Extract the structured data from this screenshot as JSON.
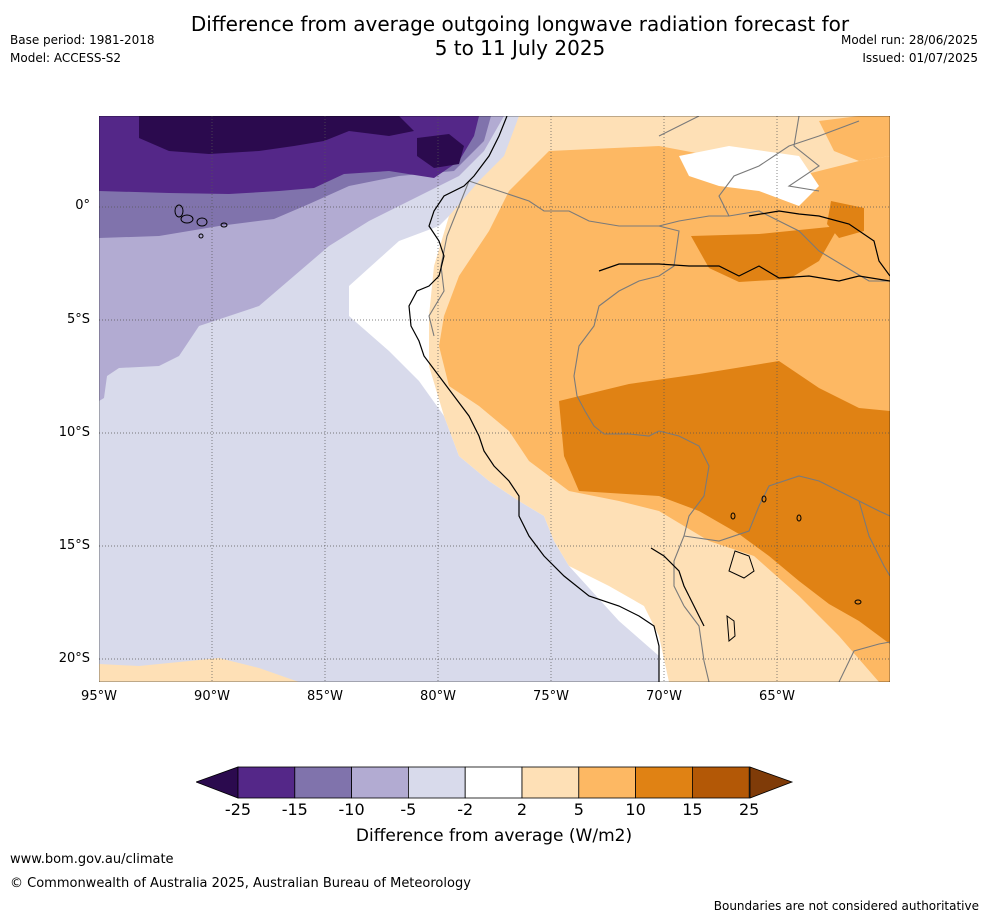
{
  "title_line1": "Difference from average outgoing longwave radiation forecast for",
  "title_line2": "5 to 11 July 2025",
  "meta_left": {
    "base_period": "Base period: 1981-2018",
    "model": "Model: ACCESS-S2"
  },
  "meta_right": {
    "model_run": "Model run: 28/06/2025",
    "issued": "Issued: 01/07/2025"
  },
  "map": {
    "lat_labels": [
      "0°",
      "5°S",
      "10°S",
      "15°S",
      "20°S"
    ],
    "lon_labels": [
      "95°W",
      "90°W",
      "85°W",
      "80°W",
      "75°W",
      "70°W",
      "65°W"
    ]
  },
  "colorbar": {
    "ticks": [
      "-25",
      "-15",
      "-10",
      "-5",
      "-2",
      "2",
      "5",
      "10",
      "15",
      "25"
    ],
    "colors": [
      "#2b0a4e",
      "#542788",
      "#8073ac",
      "#b2abd2",
      "#d8daeb",
      "#ffffff",
      "#fee0b6",
      "#fdb863",
      "#e08214",
      "#b35806",
      "#7f3b08"
    ],
    "title": "Difference from average (W/m2)"
  },
  "footer": {
    "url": "www.bom.gov.au/climate",
    "copyright": "© Commonwealth of Australia 2025, Australian Bureau of Meteorology",
    "disclaimer": "Boundaries are not considered authoritative"
  }
}
